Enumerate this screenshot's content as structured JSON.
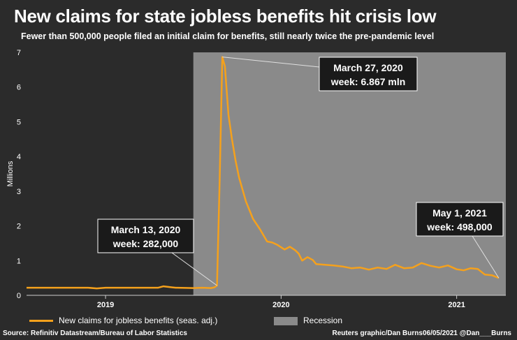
{
  "chart_data": {
    "type": "line",
    "title": "New claims for state jobless benefits hit crisis low",
    "subtitle": "Fewer than 500,000 people filed an initial claim for benefits, still nearly twice the pre-pandemic level",
    "ylabel": "Millions",
    "ylim": [
      0,
      7
    ],
    "yticks": [
      "0",
      "1",
      "2",
      "3",
      "4",
      "5",
      "6",
      "7"
    ],
    "xlim": [
      2018.55,
      2021.28
    ],
    "xticks": [
      {
        "label": "2019",
        "x": 2019.0
      },
      {
        "label": "2020",
        "x": 2020.0
      },
      {
        "label": "2021",
        "x": 2021.0
      }
    ],
    "recession": {
      "label": "Recession",
      "start": 2019.5,
      "end": 2021.28
    },
    "series": [
      {
        "name": "New claims for jobless benefits (seas. adj.)",
        "color": "#f5a11c",
        "x": [
          2018.55,
          2018.9,
          2018.95,
          2019.0,
          2019.2,
          2019.3,
          2019.33,
          2019.38,
          2019.4,
          2019.5,
          2019.55,
          2019.6,
          2019.62,
          2019.635,
          2019.65,
          2019.665,
          2019.68,
          2019.7,
          2019.72,
          2019.74,
          2019.76,
          2019.8,
          2019.84,
          2019.88,
          2019.92,
          2019.95,
          2019.98,
          2020.02,
          2020.05,
          2020.08,
          2020.1,
          2020.12,
          2020.15,
          2020.18,
          2020.2,
          2020.25,
          2020.3,
          2020.35,
          2020.4,
          2020.45,
          2020.5,
          2020.55,
          2020.6,
          2020.65,
          2020.7,
          2020.75,
          2020.8,
          2020.85,
          2020.9,
          2020.95,
          2021.0,
          2021.04,
          2021.08,
          2021.12,
          2021.16,
          2021.2,
          2021.24
        ],
        "y": [
          0.22,
          0.22,
          0.2,
          0.22,
          0.22,
          0.22,
          0.26,
          0.23,
          0.22,
          0.21,
          0.22,
          0.21,
          0.23,
          0.282,
          3.3,
          6.867,
          6.6,
          5.2,
          4.5,
          3.9,
          3.4,
          2.7,
          2.2,
          1.9,
          1.55,
          1.52,
          1.45,
          1.32,
          1.4,
          1.3,
          1.2,
          1.0,
          1.1,
          1.02,
          0.9,
          0.88,
          0.86,
          0.83,
          0.78,
          0.8,
          0.74,
          0.8,
          0.76,
          0.88,
          0.78,
          0.8,
          0.93,
          0.85,
          0.8,
          0.86,
          0.75,
          0.72,
          0.78,
          0.76,
          0.6,
          0.58,
          0.498
        ]
      }
    ],
    "annotations": [
      {
        "line1": "March 27, 2020",
        "line2": "week: 6.867 mln",
        "x": 2019.665,
        "y": 6.867
      },
      {
        "line1": "March 13, 2020",
        "line2": "week: 282,000",
        "x": 2019.635,
        "y": 0.282
      },
      {
        "line1": "May 1, 2021",
        "line2": "week: 498,000",
        "x": 2021.24,
        "y": 0.498
      }
    ]
  },
  "legend": {
    "series_label": "New claims for jobless benefits (seas. adj.)",
    "recession_label": "Recession"
  },
  "footer": {
    "source": "Source: Refinitiv Datastream/Bureau of Labor Statistics",
    "credit": "Reuters graphic/Dan Burns06/05/2021 @Dan___Burns"
  },
  "colors": {
    "background": "#2b2b2b",
    "recession": "#8a8a8a",
    "line": "#f5a11c",
    "annotation_box": "#1a1a1a"
  }
}
